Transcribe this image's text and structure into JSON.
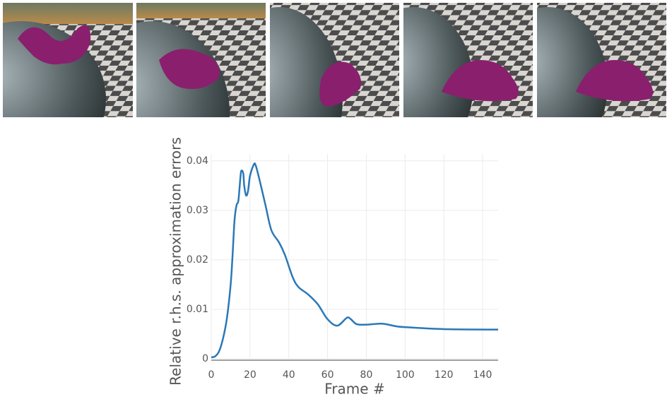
{
  "chart_data": {
    "type": "line",
    "x_label": "Frame #",
    "y_label": "Relative r.h.s. approximation errors",
    "x": [
      0,
      2,
      4,
      6,
      8,
      10,
      11,
      12,
      13,
      14,
      15,
      15.5,
      16.5,
      17,
      18,
      19,
      20,
      22,
      23,
      25,
      28,
      31,
      35,
      38,
      42,
      45,
      50,
      55,
      60,
      65,
      70,
      72,
      75,
      80,
      88,
      95,
      100,
      120,
      148
    ],
    "values": [
      0.0003,
      0.0005,
      0.0015,
      0.004,
      0.008,
      0.015,
      0.021,
      0.028,
      0.031,
      0.032,
      0.0365,
      0.038,
      0.0375,
      0.035,
      0.033,
      0.034,
      0.037,
      0.0393,
      0.039,
      0.036,
      0.031,
      0.026,
      0.0235,
      0.021,
      0.0165,
      0.0145,
      0.013,
      0.011,
      0.008,
      0.0067,
      0.0083,
      0.008,
      0.007,
      0.0069,
      0.0071,
      0.0066,
      0.0064,
      0.006,
      0.0059
    ],
    "color": "#2a78b8",
    "xlim": [
      0,
      148
    ],
    "xticks": [
      0,
      20,
      40,
      60,
      80,
      100,
      120,
      140
    ],
    "ylim": [
      0,
      0.0414
    ],
    "yticks": [
      0,
      0.01,
      0.02,
      0.03,
      0.04
    ],
    "grid": true
  }
}
